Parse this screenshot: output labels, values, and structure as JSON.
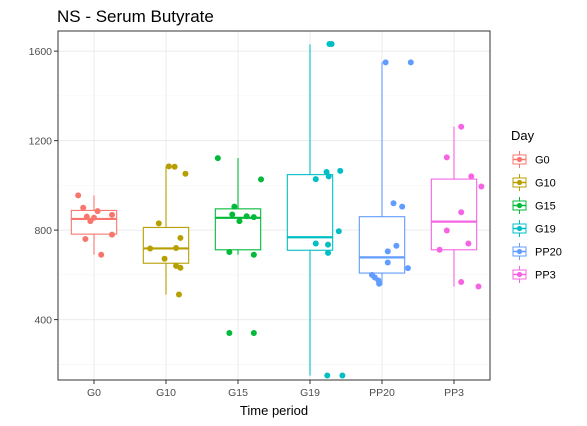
{
  "chart_data": {
    "type": "boxplot",
    "title": "NS - Serum Butyrate",
    "xlabel": "Time period",
    "ylabel": "",
    "categories": [
      "G0",
      "G10",
      "G15",
      "G19",
      "PP20",
      "PP3"
    ],
    "ylim": [
      130,
      1690
    ],
    "yticks": [
      400,
      800,
      1200,
      1600
    ],
    "grid": true,
    "legend": {
      "title": "Day",
      "position": "right",
      "entries": [
        "G0",
        "G10",
        "G15",
        "G19",
        "PP20",
        "PP3"
      ]
    },
    "series": [
      {
        "name": "G0",
        "color": "#F8766D",
        "box": {
          "q1": 782,
          "median": 850,
          "q3": 888,
          "whisker_low": 690,
          "whisker_high": 955
        },
        "points": [
          [
            -0.22,
            955
          ],
          [
            -0.15,
            900
          ],
          [
            -0.1,
            860
          ],
          [
            0.0,
            855
          ],
          [
            0.05,
            885
          ],
          [
            -0.05,
            840
          ],
          [
            -0.12,
            760
          ],
          [
            0.1,
            690
          ],
          [
            0.25,
            868
          ],
          [
            0.25,
            780
          ]
        ]
      },
      {
        "name": "G10",
        "color": "#B79F00",
        "box": {
          "q1": 652,
          "median": 718,
          "q3": 812,
          "whisker_low": 512,
          "whisker_high": 1085
        },
        "points": [
          [
            -0.1,
            830
          ],
          [
            0.04,
            1085
          ],
          [
            0.12,
            1083
          ],
          [
            0.27,
            1052
          ],
          [
            0.2,
            765
          ],
          [
            -0.22,
            718
          ],
          [
            0.14,
            720
          ],
          [
            -0.02,
            672
          ],
          [
            0.14,
            640
          ],
          [
            0.2,
            632
          ],
          [
            0.18,
            512
          ]
        ]
      },
      {
        "name": "G15",
        "color": "#00BA38",
        "box": {
          "q1": 712,
          "median": 855,
          "q3": 895,
          "whisker_low": 690,
          "whisker_high": 1122
        },
        "points": [
          [
            -0.28,
            1122
          ],
          [
            0.32,
            1027
          ],
          [
            -0.05,
            905
          ],
          [
            -0.08,
            870
          ],
          [
            0.12,
            862
          ],
          [
            0.22,
            858
          ],
          [
            0.02,
            840
          ],
          [
            -0.12,
            702
          ],
          [
            0.22,
            690
          ],
          [
            -0.12,
            340
          ],
          [
            0.22,
            340
          ]
        ]
      },
      {
        "name": "G19",
        "color": "#00BFC4",
        "box": {
          "q1": 710,
          "median": 768,
          "q3": 1048,
          "whisker_low": 150,
          "whisker_high": 1630
        },
        "points": [
          [
            0.27,
            1632
          ],
          [
            0.3,
            1632
          ],
          [
            0.23,
            1060
          ],
          [
            0.42,
            1065
          ],
          [
            0.26,
            1040
          ],
          [
            0.08,
            1028
          ],
          [
            0.25,
            735
          ],
          [
            0.4,
            795
          ],
          [
            0.08,
            740
          ],
          [
            0.25,
            698
          ],
          [
            0.24,
            150
          ],
          [
            0.45,
            150
          ]
        ]
      },
      {
        "name": "PP20",
        "color": "#619CFF",
        "box": {
          "q1": 608,
          "median": 678,
          "q3": 860,
          "whisker_low": 555,
          "whisker_high": 1550
        },
        "points": [
          [
            0.05,
            1550
          ],
          [
            0.4,
            1550
          ],
          [
            0.16,
            920
          ],
          [
            0.28,
            905
          ],
          [
            0.2,
            730
          ],
          [
            0.08,
            705
          ],
          [
            0.36,
            630
          ],
          [
            0.08,
            655
          ],
          [
            -0.14,
            600
          ],
          [
            -0.1,
            588
          ],
          [
            -0.05,
            575
          ],
          [
            -0.04,
            560
          ]
        ]
      },
      {
        "name": "PP3",
        "color": "#F564E3",
        "box": {
          "q1": 712,
          "median": 838,
          "q3": 1028,
          "whisker_low": 548,
          "whisker_high": 1262
        },
        "points": [
          [
            0.1,
            1262
          ],
          [
            -0.1,
            1125
          ],
          [
            0.24,
            1040
          ],
          [
            0.38,
            995
          ],
          [
            0.1,
            880
          ],
          [
            -0.1,
            798
          ],
          [
            0.2,
            740
          ],
          [
            -0.2,
            712
          ],
          [
            0.1,
            568
          ],
          [
            0.34,
            548
          ]
        ]
      }
    ]
  }
}
